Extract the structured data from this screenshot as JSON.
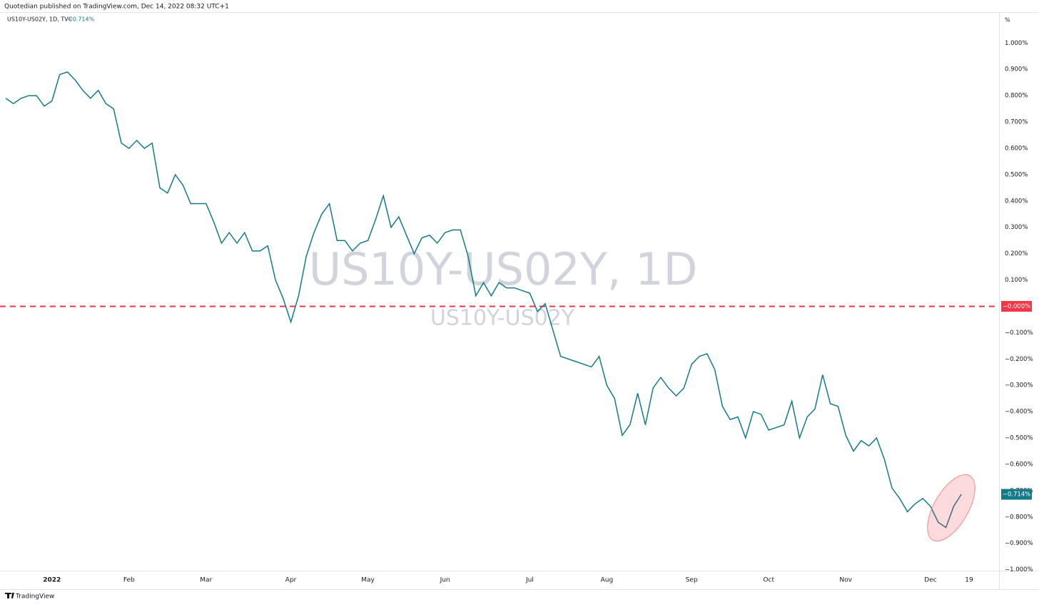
{
  "chart_data": {
    "type": "line",
    "header": "Quotedian published on TradingView.com, Dec 14, 2022 08:32 UTC+1",
    "symbol": "US10Y-US02Y, 1D, TVC",
    "watermark": "US10Y-US02Y, 1D",
    "watermark_sub": "US10Y-US02Y",
    "y_unit": "%",
    "brand": "TradingView",
    "categories": [
      null,
      null,
      null,
      null,
      null,
      null,
      "2022",
      null,
      null,
      null,
      null,
      null,
      null,
      null,
      null,
      null,
      "Feb",
      null,
      null,
      null,
      null,
      null,
      null,
      null,
      null,
      null,
      "Mar",
      null,
      null,
      null,
      null,
      null,
      null,
      null,
      null,
      null,
      null,
      "Apr",
      null,
      null,
      null,
      null,
      null,
      null,
      null,
      null,
      null,
      "May",
      null,
      null,
      null,
      null,
      null,
      null,
      null,
      null,
      null,
      "Jun",
      null,
      null,
      null,
      null,
      null,
      null,
      null,
      null,
      null,
      null,
      "Jul",
      null,
      null,
      null,
      null,
      null,
      null,
      null,
      null,
      null,
      "Aug",
      null,
      null,
      null,
      null,
      null,
      null,
      null,
      null,
      null,
      null,
      "Sep",
      null,
      null,
      null,
      null,
      null,
      null,
      null,
      null,
      null,
      "Oct",
      null,
      null,
      null,
      null,
      null,
      null,
      null,
      null,
      null,
      "Nov",
      null,
      null,
      null,
      null,
      null,
      null,
      null,
      null,
      null,
      null,
      "Dec",
      null,
      null,
      null,
      null,
      "19"
    ],
    "series": [
      {
        "name": "US10Y-US02Y",
        "color": "#137a89",
        "last_label": "−0.714%",
        "values": [
          0.79,
          0.77,
          0.79,
          0.8,
          0.8,
          0.76,
          0.78,
          0.88,
          0.89,
          0.86,
          0.82,
          0.79,
          0.82,
          0.77,
          0.75,
          0.62,
          0.6,
          0.63,
          0.6,
          0.62,
          0.45,
          0.43,
          0.5,
          0.46,
          0.39,
          0.39,
          0.39,
          0.32,
          0.24,
          0.28,
          0.24,
          0.28,
          0.21,
          0.21,
          0.23,
          0.1,
          0.03,
          -0.06,
          0.04,
          0.19,
          0.28,
          0.35,
          0.39,
          0.25,
          0.25,
          0.21,
          0.24,
          0.25,
          0.33,
          0.42,
          0.3,
          0.34,
          0.27,
          0.2,
          0.26,
          0.27,
          0.24,
          0.28,
          0.29,
          0.29,
          0.19,
          0.04,
          0.09,
          0.04,
          0.09,
          0.07,
          0.07,
          0.06,
          0.05,
          -0.02,
          0.01,
          -0.09,
          -0.19,
          -0.2,
          -0.21,
          -0.22,
          -0.23,
          -0.19,
          -0.3,
          -0.35,
          -0.49,
          -0.45,
          -0.33,
          -0.45,
          -0.31,
          -0.27,
          -0.31,
          -0.34,
          -0.31,
          -0.22,
          -0.19,
          -0.18,
          -0.24,
          -0.38,
          -0.43,
          -0.42,
          -0.5,
          -0.4,
          -0.41,
          -0.47,
          -0.46,
          -0.45,
          -0.36,
          -0.5,
          -0.42,
          -0.39,
          -0.26,
          -0.37,
          -0.38,
          -0.49,
          -0.55,
          -0.51,
          -0.53,
          -0.5,
          -0.58,
          -0.69,
          -0.73,
          -0.78,
          -0.75,
          -0.73,
          -0.76,
          -0.82,
          -0.84,
          -0.76,
          -0.714,
          null
        ]
      }
    ],
    "hline": {
      "value": 0,
      "label": "−0.000%",
      "color": "#f23645"
    },
    "ylim": [
      -1.02,
      1.12
    ],
    "yticks": [
      {
        "value": 1,
        "label": "1.000%"
      },
      {
        "value": 0.9,
        "label": "0.900%"
      },
      {
        "value": 0.8,
        "label": "0.800%"
      },
      {
        "value": 0.7,
        "label": "0.700%"
      },
      {
        "value": 0.6,
        "label": "0.600%"
      },
      {
        "value": 0.5,
        "label": "0.500%"
      },
      {
        "value": 0.4,
        "label": "0.400%"
      },
      {
        "value": 0.3,
        "label": "0.300%"
      },
      {
        "value": 0.2,
        "label": "0.200%"
      },
      {
        "value": 0.1,
        "label": "0.100%"
      },
      {
        "value": -0.1,
        "label": "−0.100%"
      },
      {
        "value": -0.2,
        "label": "−0.200%"
      },
      {
        "value": -0.3,
        "label": "−0.300%"
      },
      {
        "value": -0.4,
        "label": "−0.400%"
      },
      {
        "value": -0.5,
        "label": "−0.500%"
      },
      {
        "value": -0.6,
        "label": "−0.600%"
      },
      {
        "value": -0.7,
        "label": "−0.700%"
      },
      {
        "value": -0.8,
        "label": "−0.800%"
      },
      {
        "value": -0.9,
        "label": "−0.900%"
      },
      {
        "value": -1,
        "label": "−1.000%"
      }
    ],
    "grid": false
  }
}
